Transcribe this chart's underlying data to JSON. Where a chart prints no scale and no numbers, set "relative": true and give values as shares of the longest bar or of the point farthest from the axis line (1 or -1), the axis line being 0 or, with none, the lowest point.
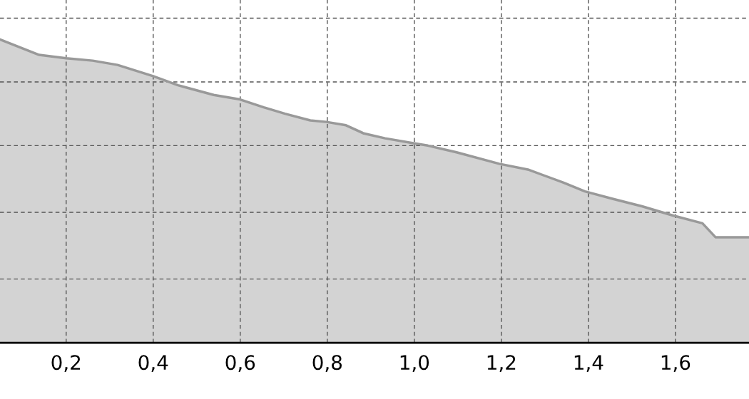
{
  "chart_data": {
    "type": "area",
    "relative": true,
    "grid": true,
    "tick_labels": "x",
    "x": [
      0.048,
      0.138,
      0.2,
      0.261,
      0.318,
      0.4,
      0.457,
      0.539,
      0.597,
      0.654,
      0.703,
      0.761,
      0.798,
      0.843,
      0.884,
      0.933,
      0.998,
      1.031,
      1.097,
      1.195,
      1.261,
      1.343,
      1.392,
      1.457,
      1.523,
      1.593,
      1.662,
      1.692,
      1.769
    ],
    "series": [
      {
        "color": "#999999",
        "values": [
          1.0,
          0.949,
          0.938,
          0.93,
          0.916,
          0.879,
          0.849,
          0.817,
          0.803,
          0.776,
          0.755,
          0.733,
          0.728,
          0.717,
          0.69,
          0.674,
          0.658,
          0.65,
          0.628,
          0.59,
          0.571,
          0.528,
          0.499,
          0.474,
          0.45,
          0.42,
          0.394,
          0.348,
          0.348
        ]
      }
    ],
    "xlim": [
      0.048,
      1.769
    ],
    "xticks": [
      {
        "value": 0.2,
        "label": "0,2"
      },
      {
        "value": 0.4,
        "label": "0,4"
      },
      {
        "value": 0.6,
        "label": "0,6"
      },
      {
        "value": 0.8,
        "label": "0,8"
      },
      {
        "value": 1.0,
        "label": "1,0"
      },
      {
        "value": 1.2,
        "label": "1,2"
      },
      {
        "value": 1.4,
        "label": "1,4"
      },
      {
        "value": 1.6,
        "label": "1,6"
      }
    ]
  }
}
